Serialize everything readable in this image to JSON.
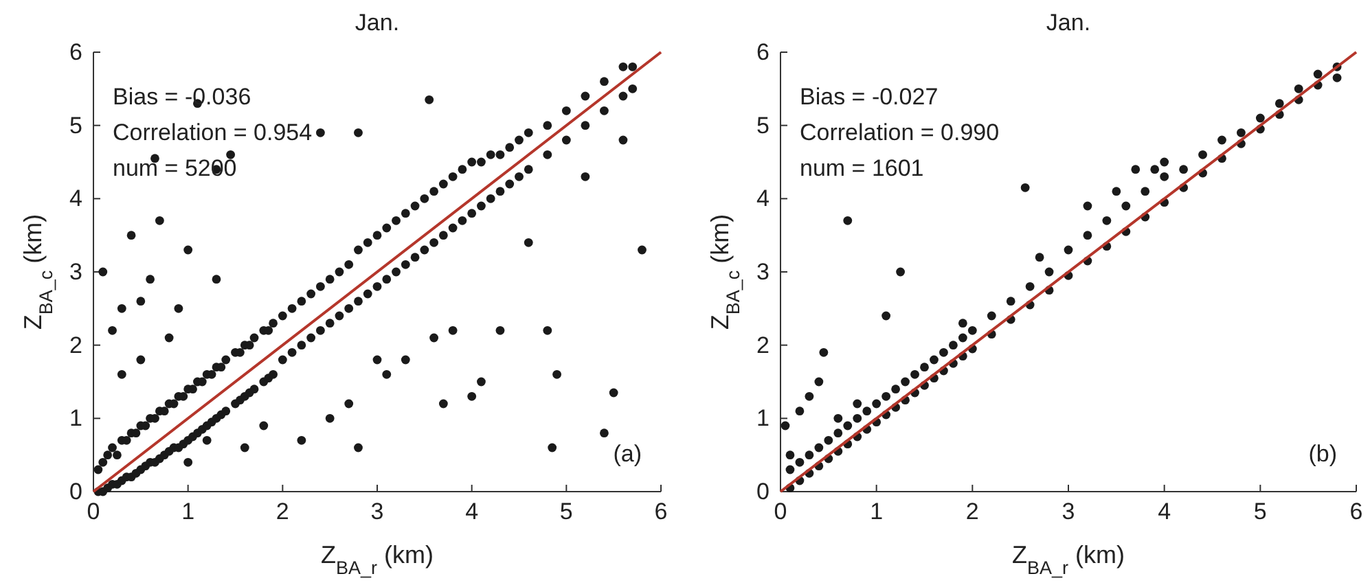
{
  "chart_data": [
    {
      "type": "scatter",
      "title": "Jan.",
      "xlabel": "Z$_{BA_r}$ (km)",
      "ylabel": "Z$_{BA_c}$ (km)",
      "xlim": [
        0,
        6
      ],
      "ylim": [
        0,
        6
      ],
      "xticks": [
        0,
        1,
        2,
        3,
        4,
        5,
        6
      ],
      "yticks": [
        0,
        1,
        2,
        3,
        4,
        5,
        6
      ],
      "grid": false,
      "annotations": [
        "Bias = -0.036",
        "Correlation = 0.954",
        "num = 5200",
        "(a)"
      ],
      "series": [
        {
          "marker": "circle",
          "color": "#1a1a1a",
          "x": [
            0.05,
            0.1,
            0.15,
            0.2,
            0.25,
            0.3,
            0.35,
            0.4,
            0.45,
            0.5,
            0.55,
            0.6,
            0.65,
            0.7,
            0.75,
            0.8,
            0.85,
            0.9,
            0.95,
            1.0,
            1.05,
            1.1,
            1.15,
            1.2,
            1.25,
            1.3,
            1.35,
            1.4,
            1.5,
            1.55,
            1.6,
            1.65,
            1.7,
            1.8,
            1.85,
            1.9,
            2.0,
            2.1,
            2.2,
            2.3,
            2.4,
            2.5,
            2.6,
            2.7,
            2.8,
            2.9,
            3.0,
            3.1,
            3.2,
            3.3,
            3.4,
            3.5,
            3.6,
            3.7,
            3.8,
            3.9,
            4.0,
            4.1,
            4.2,
            4.3,
            4.4,
            4.5,
            4.6,
            4.8,
            5.0,
            5.2,
            5.4,
            5.6,
            5.7
          ],
          "values": [
            0.3,
            0.4,
            0.5,
            0.6,
            0.5,
            0.7,
            0.7,
            0.8,
            0.8,
            0.9,
            0.9,
            1.0,
            1.0,
            1.1,
            1.1,
            1.2,
            1.2,
            1.3,
            1.3,
            1.4,
            1.4,
            1.5,
            1.5,
            1.6,
            1.6,
            1.7,
            1.7,
            1.8,
            1.9,
            1.9,
            2.0,
            2.0,
            2.1,
            2.2,
            2.2,
            2.3,
            2.4,
            2.5,
            2.6,
            2.7,
            2.8,
            2.9,
            3.0,
            3.1,
            3.3,
            3.4,
            3.5,
            3.6,
            3.7,
            3.8,
            3.9,
            4.0,
            4.1,
            4.2,
            4.3,
            4.4,
            4.5,
            4.5,
            4.6,
            4.6,
            4.7,
            4.8,
            4.9,
            5.0,
            5.2,
            5.4,
            5.6,
            5.8,
            5.8
          ]
        },
        {
          "marker": "circle",
          "color": "#1a1a1a",
          "x": [
            0.05,
            0.1,
            0.15,
            0.2,
            0.25,
            0.3,
            0.35,
            0.4,
            0.45,
            0.5,
            0.55,
            0.6,
            0.65,
            0.7,
            0.75,
            0.8,
            0.85,
            0.9,
            0.95,
            1.0,
            1.05,
            1.1,
            1.15,
            1.2,
            1.25,
            1.3,
            1.35,
            1.4,
            1.5,
            1.55,
            1.6,
            1.65,
            1.7,
            1.8,
            1.85,
            1.9,
            2.0,
            2.1,
            2.2,
            2.3,
            2.4,
            2.5,
            2.6,
            2.7,
            2.8,
            2.9,
            3.0,
            3.1,
            3.2,
            3.3,
            3.4,
            3.5,
            3.6,
            3.7,
            3.8,
            3.9,
            4.0,
            4.1,
            4.2,
            4.3,
            4.4,
            4.5,
            4.6,
            4.8,
            5.0,
            5.2,
            5.4,
            5.6,
            5.7
          ],
          "values": [
            0.0,
            0.0,
            0.05,
            0.1,
            0.1,
            0.15,
            0.2,
            0.2,
            0.25,
            0.3,
            0.35,
            0.4,
            0.4,
            0.45,
            0.5,
            0.55,
            0.6,
            0.6,
            0.65,
            0.7,
            0.75,
            0.8,
            0.85,
            0.9,
            0.95,
            1.0,
            1.05,
            1.1,
            1.2,
            1.25,
            1.3,
            1.35,
            1.4,
            1.5,
            1.55,
            1.6,
            1.8,
            1.9,
            2.0,
            2.1,
            2.2,
            2.3,
            2.4,
            2.5,
            2.6,
            2.7,
            2.8,
            2.9,
            3.0,
            3.1,
            3.2,
            3.3,
            3.4,
            3.5,
            3.6,
            3.7,
            3.8,
            3.9,
            4.0,
            4.1,
            4.2,
            4.3,
            4.4,
            4.6,
            4.8,
            5.0,
            5.2,
            5.4,
            5.5
          ]
        },
        {
          "marker": "circle",
          "color": "#1a1a1a",
          "x": [
            0.1,
            0.2,
            0.3,
            0.4,
            0.5,
            0.6,
            0.7,
            0.9,
            1.0,
            1.1,
            1.3,
            0.65,
            1.45,
            2.4,
            2.8,
            3.55,
            1.3,
            0.5,
            0.3,
            0.8,
            1.0,
            1.2,
            1.6,
            1.8,
            2.2,
            2.5,
            2.7,
            2.8,
            3.0,
            3.1,
            3.3,
            3.6,
            3.7,
            3.8,
            4.0,
            4.1,
            4.3,
            4.6,
            4.8,
            4.9,
            4.85,
            5.4,
            5.5,
            5.6,
            5.8,
            5.2
          ],
          "values": [
            3.0,
            2.2,
            2.5,
            3.5,
            2.6,
            2.9,
            3.7,
            2.5,
            3.3,
            5.3,
            4.4,
            4.55,
            4.6,
            4.9,
            4.9,
            5.35,
            2.9,
            1.8,
            1.6,
            2.1,
            0.4,
            0.7,
            0.6,
            0.9,
            0.7,
            1.0,
            1.2,
            0.6,
            1.8,
            1.6,
            1.8,
            2.1,
            1.2,
            2.2,
            1.3,
            1.5,
            2.2,
            3.4,
            2.2,
            1.6,
            0.6,
            0.8,
            1.35,
            4.8,
            3.3,
            4.3
          ]
        },
        {
          "type": "line",
          "color": "#b5362b",
          "x": [
            0,
            6
          ],
          "values": [
            0,
            6
          ]
        }
      ]
    },
    {
      "type": "scatter",
      "title": "Jan.",
      "xlabel": "Z$_{BA_r}$ (km)",
      "ylabel": "Z$_{BA_c}$ (km)",
      "xlim": [
        0,
        6
      ],
      "ylim": [
        0,
        6
      ],
      "xticks": [
        0,
        1,
        2,
        3,
        4,
        5,
        6
      ],
      "yticks": [
        0,
        1,
        2,
        3,
        4,
        5,
        6
      ],
      "grid": false,
      "annotations": [
        "Bias = -0.027",
        "Correlation = 0.990",
        "num = 1601",
        "(b)"
      ],
      "series": [
        {
          "marker": "circle",
          "color": "#1a1a1a",
          "x": [
            0.1,
            0.2,
            0.3,
            0.4,
            0.5,
            0.6,
            0.7,
            0.8,
            0.9,
            1.0,
            1.1,
            1.2,
            1.3,
            1.4,
            1.5,
            1.6,
            1.7,
            1.8,
            1.9,
            2.0,
            2.2,
            2.4,
            2.6,
            2.8,
            3.0,
            3.2,
            3.4,
            3.6,
            3.8,
            4.0,
            4.2,
            4.4,
            4.6,
            4.8,
            5.0,
            5.2,
            5.4,
            5.6,
            5.8
          ],
          "values": [
            0.3,
            0.4,
            0.5,
            0.6,
            0.7,
            0.8,
            0.9,
            1.0,
            1.1,
            1.2,
            1.3,
            1.4,
            1.5,
            1.6,
            1.7,
            1.8,
            1.9,
            2.0,
            2.1,
            2.2,
            2.4,
            2.6,
            2.8,
            3.0,
            3.3,
            3.5,
            3.7,
            3.9,
            4.1,
            4.3,
            4.4,
            4.6,
            4.8,
            4.9,
            5.1,
            5.3,
            5.5,
            5.7,
            5.8
          ]
        },
        {
          "marker": "circle",
          "color": "#1a1a1a",
          "x": [
            0.1,
            0.2,
            0.3,
            0.4,
            0.5,
            0.6,
            0.7,
            0.8,
            0.9,
            1.0,
            1.1,
            1.2,
            1.3,
            1.4,
            1.5,
            1.6,
            1.7,
            1.8,
            1.9,
            2.0,
            2.2,
            2.4,
            2.6,
            2.8,
            3.0,
            3.2,
            3.4,
            3.6,
            3.8,
            4.0,
            4.2,
            4.4,
            4.6,
            4.8,
            5.0,
            5.2,
            5.4,
            5.6,
            5.8
          ],
          "values": [
            0.05,
            0.15,
            0.25,
            0.35,
            0.45,
            0.55,
            0.65,
            0.75,
            0.85,
            0.95,
            1.05,
            1.15,
            1.25,
            1.35,
            1.45,
            1.55,
            1.65,
            1.75,
            1.85,
            1.95,
            2.15,
            2.35,
            2.55,
            2.75,
            2.95,
            3.15,
            3.35,
            3.55,
            3.75,
            3.95,
            4.15,
            4.35,
            4.55,
            4.75,
            4.95,
            5.15,
            5.35,
            5.55,
            5.65
          ]
        },
        {
          "marker": "circle",
          "color": "#1a1a1a",
          "x": [
            0.7,
            1.25,
            1.1,
            0.45,
            0.4,
            0.3,
            0.2,
            0.05,
            0.1,
            2.55,
            3.9,
            3.7,
            4.0,
            3.5,
            3.2,
            0.6,
            0.8,
            1.9,
            2.7
          ],
          "values": [
            3.7,
            3.0,
            2.4,
            1.9,
            1.5,
            1.3,
            1.1,
            0.9,
            0.5,
            4.15,
            4.4,
            4.4,
            4.5,
            4.1,
            3.9,
            1.0,
            1.2,
            2.3,
            3.2
          ]
        },
        {
          "type": "line",
          "color": "#b5362b",
          "x": [
            0,
            6
          ],
          "values": [
            0,
            6
          ]
        }
      ]
    }
  ]
}
